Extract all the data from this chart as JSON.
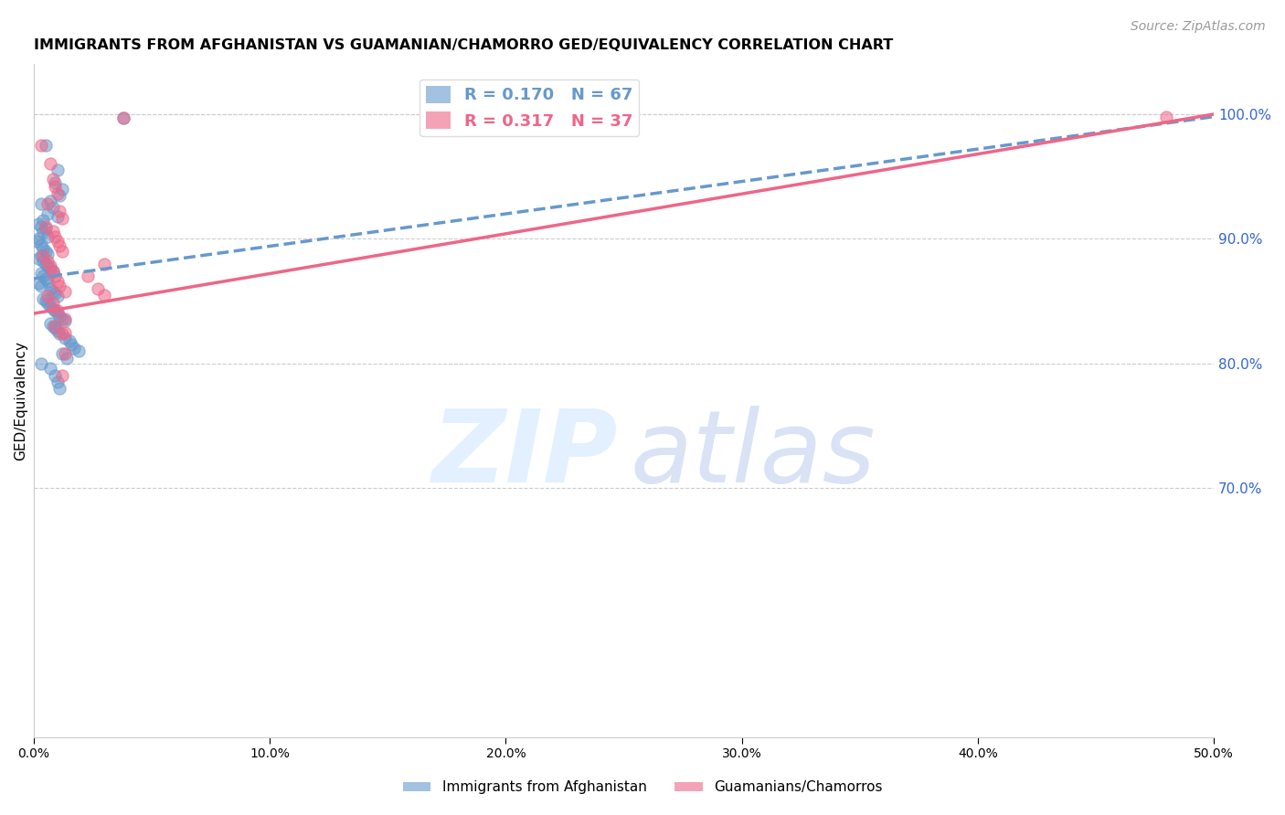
{
  "title": "IMMIGRANTS FROM AFGHANISTAN VS GUAMANIAN/CHAMORRO GED/EQUIVALENCY CORRELATION CHART",
  "source": "Source: ZipAtlas.com",
  "ylabel": "GED/Equivalency",
  "xlim": [
    0.0,
    0.5
  ],
  "ylim": [
    0.5,
    1.04
  ],
  "yticks": [
    0.7,
    0.8,
    0.9,
    1.0
  ],
  "xticks": [
    0.0,
    0.1,
    0.2,
    0.3,
    0.4,
    0.5
  ],
  "legend_entries": [
    {
      "label": "R = 0.170   N = 67",
      "color": "#6699cc"
    },
    {
      "label": "R = 0.317   N = 37",
      "color": "#ee6688"
    }
  ],
  "legend_labels_bottom": [
    "Immigrants from Afghanistan",
    "Guamanians/Chamorros"
  ],
  "blue_scatter": [
    [
      0.038,
      0.997
    ],
    [
      0.005,
      0.975
    ],
    [
      0.01,
      0.955
    ],
    [
      0.009,
      0.945
    ],
    [
      0.012,
      0.94
    ],
    [
      0.011,
      0.935
    ],
    [
      0.007,
      0.93
    ],
    [
      0.003,
      0.928
    ],
    [
      0.008,
      0.925
    ],
    [
      0.006,
      0.92
    ],
    [
      0.01,
      0.918
    ],
    [
      0.004,
      0.915
    ],
    [
      0.002,
      0.912
    ],
    [
      0.003,
      0.91
    ],
    [
      0.005,
      0.908
    ],
    [
      0.004,
      0.905
    ],
    [
      0.006,
      0.902
    ],
    [
      0.002,
      0.9
    ],
    [
      0.001,
      0.898
    ],
    [
      0.003,
      0.895
    ],
    [
      0.004,
      0.892
    ],
    [
      0.005,
      0.89
    ],
    [
      0.006,
      0.888
    ],
    [
      0.003,
      0.886
    ],
    [
      0.002,
      0.884
    ],
    [
      0.004,
      0.882
    ],
    [
      0.005,
      0.88
    ],
    [
      0.006,
      0.878
    ],
    [
      0.007,
      0.876
    ],
    [
      0.008,
      0.874
    ],
    [
      0.003,
      0.872
    ],
    [
      0.004,
      0.87
    ],
    [
      0.005,
      0.868
    ],
    [
      0.006,
      0.866
    ],
    [
      0.002,
      0.864
    ],
    [
      0.003,
      0.862
    ],
    [
      0.007,
      0.86
    ],
    [
      0.008,
      0.858
    ],
    [
      0.009,
      0.856
    ],
    [
      0.01,
      0.854
    ],
    [
      0.004,
      0.852
    ],
    [
      0.005,
      0.85
    ],
    [
      0.006,
      0.848
    ],
    [
      0.007,
      0.846
    ],
    [
      0.008,
      0.844
    ],
    [
      0.009,
      0.842
    ],
    [
      0.01,
      0.84
    ],
    [
      0.011,
      0.838
    ],
    [
      0.012,
      0.836
    ],
    [
      0.013,
      0.834
    ],
    [
      0.007,
      0.832
    ],
    [
      0.008,
      0.83
    ],
    [
      0.009,
      0.828
    ],
    [
      0.01,
      0.826
    ],
    [
      0.011,
      0.824
    ],
    [
      0.013,
      0.82
    ],
    [
      0.015,
      0.818
    ],
    [
      0.016,
      0.815
    ],
    [
      0.017,
      0.812
    ],
    [
      0.019,
      0.81
    ],
    [
      0.012,
      0.808
    ],
    [
      0.014,
      0.804
    ],
    [
      0.003,
      0.8
    ],
    [
      0.007,
      0.796
    ],
    [
      0.009,
      0.79
    ],
    [
      0.01,
      0.785
    ],
    [
      0.011,
      0.78
    ]
  ],
  "pink_scatter": [
    [
      0.038,
      0.997
    ],
    [
      0.003,
      0.975
    ],
    [
      0.007,
      0.96
    ],
    [
      0.008,
      0.948
    ],
    [
      0.009,
      0.942
    ],
    [
      0.01,
      0.936
    ],
    [
      0.006,
      0.928
    ],
    [
      0.011,
      0.922
    ],
    [
      0.012,
      0.916
    ],
    [
      0.005,
      0.91
    ],
    [
      0.008,
      0.906
    ],
    [
      0.009,
      0.902
    ],
    [
      0.01,
      0.898
    ],
    [
      0.011,
      0.894
    ],
    [
      0.012,
      0.89
    ],
    [
      0.004,
      0.886
    ],
    [
      0.006,
      0.882
    ],
    [
      0.007,
      0.878
    ],
    [
      0.008,
      0.874
    ],
    [
      0.009,
      0.87
    ],
    [
      0.01,
      0.866
    ],
    [
      0.011,
      0.862
    ],
    [
      0.013,
      0.858
    ],
    [
      0.006,
      0.854
    ],
    [
      0.008,
      0.848
    ],
    [
      0.01,
      0.842
    ],
    [
      0.013,
      0.836
    ],
    [
      0.009,
      0.83
    ],
    [
      0.012,
      0.824
    ],
    [
      0.03,
      0.88
    ],
    [
      0.023,
      0.87
    ],
    [
      0.027,
      0.86
    ],
    [
      0.03,
      0.855
    ],
    [
      0.013,
      0.825
    ],
    [
      0.013,
      0.808
    ],
    [
      0.012,
      0.79
    ],
    [
      0.48,
      0.998
    ]
  ],
  "blue_line_x": [
    0.0,
    0.5
  ],
  "blue_line_y": [
    0.868,
    0.998
  ],
  "pink_line_x": [
    0.0,
    0.5
  ],
  "pink_line_y": [
    0.84,
    1.0
  ],
  "blue_color": "#6699cc",
  "pink_color": "#ee6688",
  "blue_alpha": 0.55,
  "pink_alpha": 0.55,
  "dot_size": 90,
  "background_color": "#ffffff",
  "grid_color": "#cccccc",
  "axis_label_color": "#3366cc",
  "title_fontsize": 11.5,
  "source_fontsize": 10,
  "watermark_zip_color": "#ddeeff",
  "watermark_atlas_color": "#bbccee"
}
